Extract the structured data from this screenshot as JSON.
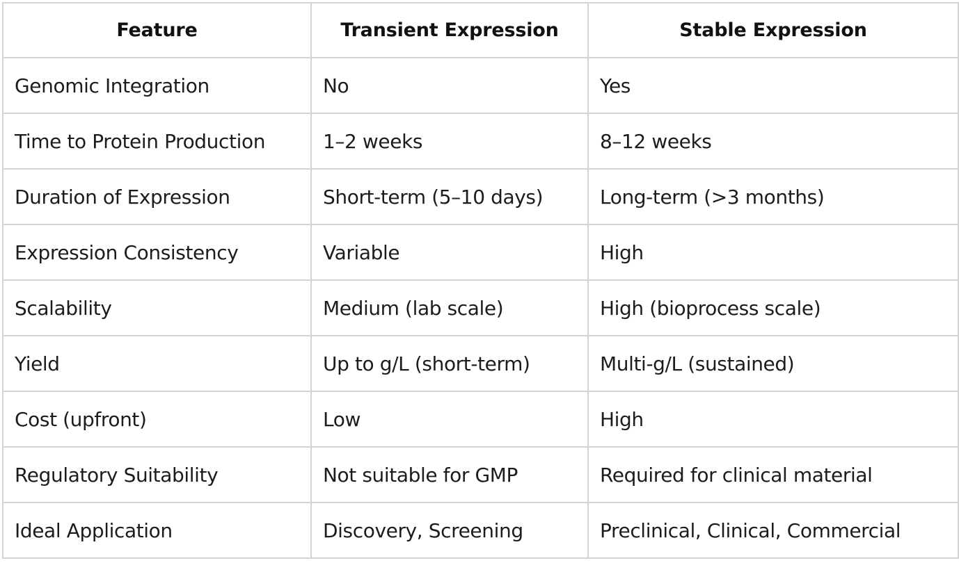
{
  "table": {
    "headers": [
      "Feature",
      "Transient Expression",
      "Stable Expression"
    ],
    "rows": [
      [
        "Genomic Integration",
        "No",
        "Yes"
      ],
      [
        "Time to Protein Production",
        "1–2 weeks",
        "8–12 weeks"
      ],
      [
        "Duration of Expression",
        "Short-term (5–10 days)",
        "Long-term (>3 months)"
      ],
      [
        "Expression Consistency",
        "Variable",
        "High"
      ],
      [
        "Scalability",
        "Medium (lab scale)",
        "High (bioprocess scale)"
      ],
      [
        "Yield",
        "Up to g/L (short-term)",
        "Multi-g/L (sustained)"
      ],
      [
        "Cost (upfront)",
        "Low",
        "High"
      ],
      [
        "Regulatory Suitability",
        "Not suitable for GMP",
        "Required for clinical material"
      ],
      [
        "Ideal Application",
        "Discovery, Screening",
        "Preclinical, Clinical, Commercial"
      ]
    ]
  },
  "colors": {
    "border": "#d3d3d3",
    "text": "#1c1c1c",
    "background": "#ffffff"
  }
}
